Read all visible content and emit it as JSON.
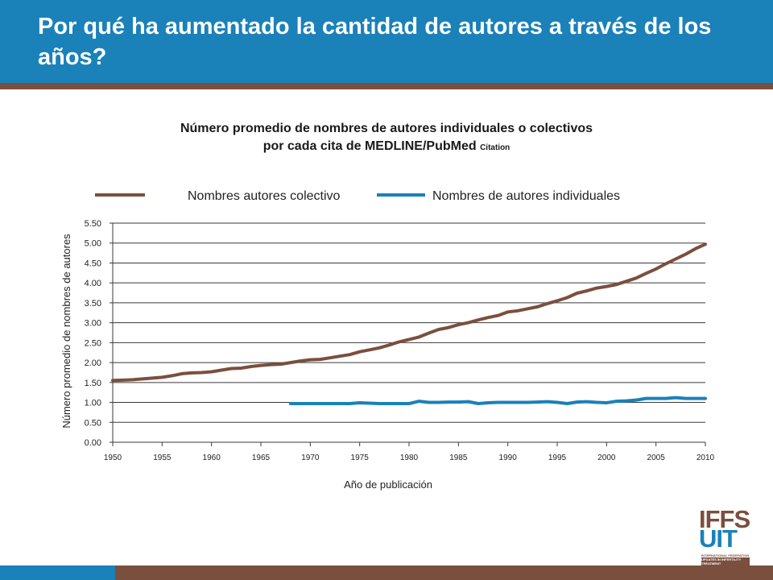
{
  "header": {
    "title": "Por qué ha aumentado la cantidad de autores a través de los años?"
  },
  "colors": {
    "blue": "#1a81b9",
    "brown": "#7a4f3e"
  },
  "logo": {
    "line1": "IFFS",
    "line2": "UIT",
    "sub1": "INTERNATIONAL FEDERATION OF FERTILITY SOCIETIES",
    "sub2": "UPDATES IN INFERTILITY TREATMENT"
  },
  "chart_data": {
    "type": "line",
    "title_line1": "Número promedio de nombres de autores individuales o colectivos",
    "title_line2": "por cada cita de MEDLINE/PubMed",
    "title_small": "Citation",
    "xlabel": "Año de publicación",
    "ylabel": "Número promedio de nombres de autores",
    "xlim": [
      1950,
      2010
    ],
    "ylim": [
      0,
      5.5
    ],
    "xticks": [
      "1950",
      "1955",
      "1960",
      "1965",
      "1970",
      "1975",
      "1980",
      "1985",
      "1990",
      "1995",
      "2000",
      "2005",
      "2010"
    ],
    "yticks": [
      "0.00",
      "0.50",
      "1.00",
      "1.50",
      "2.00",
      "2.50",
      "3.00",
      "3.50",
      "4.00",
      "4.50",
      "5.00",
      "5.50"
    ],
    "grid": "horizontal",
    "legend_position": "top",
    "series": [
      {
        "name": "Nombres autores colectivo",
        "color": "#7a4f3e",
        "points": [
          [
            1950,
            1.55
          ],
          [
            1951,
            1.56
          ],
          [
            1952,
            1.57
          ],
          [
            1953,
            1.59
          ],
          [
            1954,
            1.61
          ],
          [
            1955,
            1.63
          ],
          [
            1956,
            1.67
          ],
          [
            1957,
            1.72
          ],
          [
            1958,
            1.74
          ],
          [
            1959,
            1.75
          ],
          [
            1960,
            1.77
          ],
          [
            1961,
            1.81
          ],
          [
            1962,
            1.85
          ],
          [
            1963,
            1.86
          ],
          [
            1964,
            1.9
          ],
          [
            1965,
            1.93
          ],
          [
            1966,
            1.95
          ],
          [
            1967,
            1.96
          ],
          [
            1968,
            2.0
          ],
          [
            1969,
            2.04
          ],
          [
            1970,
            2.07
          ],
          [
            1971,
            2.08
          ],
          [
            1972,
            2.12
          ],
          [
            1973,
            2.16
          ],
          [
            1974,
            2.2
          ],
          [
            1975,
            2.27
          ],
          [
            1976,
            2.32
          ],
          [
            1977,
            2.37
          ],
          [
            1978,
            2.44
          ],
          [
            1979,
            2.52
          ],
          [
            1980,
            2.58
          ],
          [
            1981,
            2.64
          ],
          [
            1982,
            2.74
          ],
          [
            1983,
            2.83
          ],
          [
            1984,
            2.88
          ],
          [
            1985,
            2.95
          ],
          [
            1986,
            3.0
          ],
          [
            1987,
            3.07
          ],
          [
            1988,
            3.13
          ],
          [
            1989,
            3.18
          ],
          [
            1990,
            3.27
          ],
          [
            1991,
            3.3
          ],
          [
            1992,
            3.35
          ],
          [
            1993,
            3.4
          ],
          [
            1994,
            3.48
          ],
          [
            1995,
            3.55
          ],
          [
            1996,
            3.63
          ],
          [
            1997,
            3.74
          ],
          [
            1998,
            3.8
          ],
          [
            1999,
            3.87
          ],
          [
            2000,
            3.91
          ],
          [
            2001,
            3.96
          ],
          [
            2002,
            4.04
          ],
          [
            2003,
            4.12
          ],
          [
            2004,
            4.24
          ],
          [
            2005,
            4.35
          ],
          [
            2006,
            4.48
          ],
          [
            2007,
            4.6
          ],
          [
            2008,
            4.72
          ],
          [
            2009,
            4.86
          ],
          [
            2010,
            4.97
          ]
        ]
      },
      {
        "name": "Nombres de autores individuales",
        "color": "#1a81b9",
        "points": [
          [
            1968,
            0.97
          ],
          [
            1969,
            0.97
          ],
          [
            1970,
            0.97
          ],
          [
            1971,
            0.97
          ],
          [
            1972,
            0.97
          ],
          [
            1973,
            0.97
          ],
          [
            1974,
            0.97
          ],
          [
            1975,
            0.99
          ],
          [
            1976,
            0.98
          ],
          [
            1977,
            0.97
          ],
          [
            1978,
            0.97
          ],
          [
            1979,
            0.97
          ],
          [
            1980,
            0.97
          ],
          [
            1981,
            1.03
          ],
          [
            1982,
            1.0
          ],
          [
            1983,
            1.0
          ],
          [
            1984,
            1.01
          ],
          [
            1985,
            1.01
          ],
          [
            1986,
            1.02
          ],
          [
            1987,
            0.97
          ],
          [
            1988,
            0.99
          ],
          [
            1989,
            1.0
          ],
          [
            1990,
            1.0
          ],
          [
            1991,
            1.0
          ],
          [
            1992,
            1.0
          ],
          [
            1993,
            1.01
          ],
          [
            1994,
            1.02
          ],
          [
            1995,
            1.0
          ],
          [
            1996,
            0.97
          ],
          [
            1997,
            1.01
          ],
          [
            1998,
            1.02
          ],
          [
            1999,
            1.0
          ],
          [
            2000,
            0.99
          ],
          [
            2001,
            1.03
          ],
          [
            2002,
            1.04
          ],
          [
            2003,
            1.06
          ],
          [
            2004,
            1.1
          ],
          [
            2005,
            1.1
          ],
          [
            2006,
            1.1
          ],
          [
            2007,
            1.12
          ],
          [
            2008,
            1.1
          ],
          [
            2009,
            1.1
          ],
          [
            2010,
            1.1
          ]
        ]
      }
    ]
  }
}
